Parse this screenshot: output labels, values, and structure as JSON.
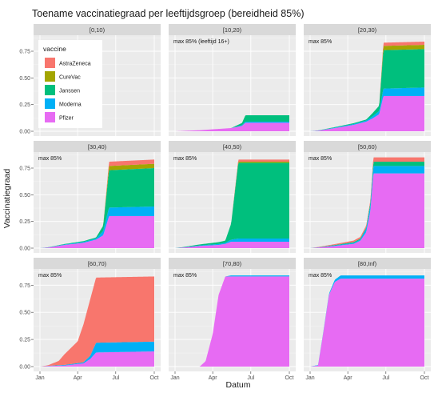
{
  "title": "Toename vaccinatiegraad per leeftijdsgroep (bereidheid 85%)",
  "chart_data": {
    "type": "area",
    "title": "Toename vaccinatiegraad per leeftijdsgroep (bereidheid 85%)",
    "xlabel": "Datum",
    "ylabel": "Vaccinatiegraad",
    "ylim": [
      0,
      0.87
    ],
    "x_ticks": [
      "Jan",
      "Apr",
      "Jul",
      "Oct"
    ],
    "y_ticks": [
      "0.00",
      "0.25",
      "0.50",
      "0.75"
    ],
    "stacking": "stacked area per vaccine",
    "grid": true,
    "legend": {
      "title": "vaccine",
      "placement": "inside first panel, top-left",
      "items": [
        {
          "name": "AstraZeneca",
          "color": "#F8766D"
        },
        {
          "name": "CureVac",
          "color": "#A3A500"
        },
        {
          "name": "Janssen",
          "color": "#00BF7D"
        },
        {
          "name": "Moderna",
          "color": "#00B0F6"
        },
        {
          "name": "Pfizer",
          "color": "#E76BF3"
        }
      ]
    },
    "series_order_bottom_to_top": [
      "Pfizer",
      "Moderna",
      "Janssen",
      "CureVac",
      "AstraZeneca"
    ],
    "x_domain": [
      "2021-01-01",
      "2021-10-01"
    ],
    "panels": [
      {
        "label": "[0,10)",
        "annotation": "",
        "series": {}
      },
      {
        "label": "[10,20)",
        "annotation": "max 85% (leeftijd 16+)",
        "series": {
          "Pfizer": [
            [
              "2021-01-01",
              0
            ],
            [
              "2021-03-01",
              0.01
            ],
            [
              "2021-05-15",
              0.03
            ],
            [
              "2021-06-10",
              0.05
            ],
            [
              "2021-06-18",
              0.08
            ],
            [
              "2021-10-01",
              0.08
            ]
          ],
          "Moderna": [
            [
              "2021-01-01",
              0
            ],
            [
              "2021-05-15",
              0
            ],
            [
              "2021-06-18",
              0.01
            ],
            [
              "2021-10-01",
              0.01
            ]
          ],
          "Janssen": [
            [
              "2021-01-01",
              0
            ],
            [
              "2021-05-15",
              0
            ],
            [
              "2021-06-10",
              0.02
            ],
            [
              "2021-06-18",
              0.06
            ],
            [
              "2021-10-01",
              0.06
            ]
          ],
          "CureVac": [
            [
              "2021-01-01",
              0
            ],
            [
              "2021-10-01",
              0
            ]
          ],
          "AstraZeneca": [
            [
              "2021-01-01",
              0
            ],
            [
              "2021-10-01",
              0
            ]
          ]
        }
      },
      {
        "label": "[20,30)",
        "annotation": "max 85%",
        "series": {
          "Pfizer": [
            [
              "2021-01-01",
              0
            ],
            [
              "2021-01-20",
              0.005
            ],
            [
              "2021-03-01",
              0.03
            ],
            [
              "2021-04-15",
              0.06
            ],
            [
              "2021-05-15",
              0.09
            ],
            [
              "2021-05-30",
              0.12
            ],
            [
              "2021-06-15",
              0.16
            ],
            [
              "2021-06-25",
              0.33
            ],
            [
              "2021-10-01",
              0.33
            ]
          ],
          "Moderna": [
            [
              "2021-01-01",
              0
            ],
            [
              "2021-05-15",
              0.01
            ],
            [
              "2021-06-15",
              0.03
            ],
            [
              "2021-06-25",
              0.07
            ],
            [
              "2021-10-01",
              0.08
            ]
          ],
          "Janssen": [
            [
              "2021-01-01",
              0
            ],
            [
              "2021-05-15",
              0.01
            ],
            [
              "2021-06-15",
              0.05
            ],
            [
              "2021-06-25",
              0.36
            ],
            [
              "2021-10-01",
              0.36
            ]
          ],
          "CureVac": [
            [
              "2021-01-01",
              0
            ],
            [
              "2021-06-15",
              0
            ],
            [
              "2021-06-25",
              0.04
            ],
            [
              "2021-10-01",
              0.04
            ]
          ],
          "AstraZeneca": [
            [
              "2021-01-01",
              0
            ],
            [
              "2021-06-15",
              0
            ],
            [
              "2021-06-25",
              0.03
            ],
            [
              "2021-10-01",
              0.03
            ]
          ]
        }
      },
      {
        "label": "[30,40)",
        "annotation": "max 85%",
        "series": {
          "Pfizer": [
            [
              "2021-01-01",
              0
            ],
            [
              "2021-01-20",
              0.005
            ],
            [
              "2021-03-01",
              0.03
            ],
            [
              "2021-04-15",
              0.05
            ],
            [
              "2021-05-15",
              0.08
            ],
            [
              "2021-06-01",
              0.12
            ],
            [
              "2021-06-15",
              0.3
            ],
            [
              "2021-10-01",
              0.3
            ]
          ],
          "Moderna": [
            [
              "2021-01-01",
              0
            ],
            [
              "2021-05-15",
              0.01
            ],
            [
              "2021-06-01",
              0.04
            ],
            [
              "2021-06-15",
              0.08
            ],
            [
              "2021-10-01",
              0.09
            ]
          ],
          "Janssen": [
            [
              "2021-01-01",
              0
            ],
            [
              "2021-05-15",
              0.01
            ],
            [
              "2021-06-01",
              0.05
            ],
            [
              "2021-06-15",
              0.35
            ],
            [
              "2021-10-01",
              0.36
            ]
          ],
          "CureVac": [
            [
              "2021-01-01",
              0
            ],
            [
              "2021-06-01",
              0
            ],
            [
              "2021-06-15",
              0.04
            ],
            [
              "2021-10-01",
              0.04
            ]
          ],
          "AstraZeneca": [
            [
              "2021-01-01",
              0
            ],
            [
              "2021-06-01",
              0
            ],
            [
              "2021-06-15",
              0.04
            ],
            [
              "2021-10-01",
              0.04
            ]
          ]
        }
      },
      {
        "label": "[40,50)",
        "annotation": "max 85%",
        "series": {
          "Pfizer": [
            [
              "2021-01-01",
              0
            ],
            [
              "2021-01-20",
              0.005
            ],
            [
              "2021-03-01",
              0.02
            ],
            [
              "2021-04-15",
              0.03
            ],
            [
              "2021-05-01",
              0.04
            ],
            [
              "2021-05-15",
              0.06
            ],
            [
              "2021-06-01",
              0.06
            ],
            [
              "2021-10-01",
              0.06
            ]
          ],
          "Moderna": [
            [
              "2021-01-01",
              0
            ],
            [
              "2021-05-01",
              0.01
            ],
            [
              "2021-06-01",
              0.03
            ],
            [
              "2021-10-01",
              0.03
            ]
          ],
          "Janssen": [
            [
              "2021-01-01",
              0
            ],
            [
              "2021-05-01",
              0.02
            ],
            [
              "2021-05-15",
              0.15
            ],
            [
              "2021-06-01",
              0.71
            ],
            [
              "2021-10-01",
              0.71
            ]
          ],
          "CureVac": [
            [
              "2021-01-01",
              0
            ],
            [
              "2021-05-15",
              0
            ],
            [
              "2021-06-01",
              0.01
            ],
            [
              "2021-10-01",
              0.01
            ]
          ],
          "AstraZeneca": [
            [
              "2021-01-01",
              0
            ],
            [
              "2021-05-15",
              0
            ],
            [
              "2021-06-01",
              0.02
            ],
            [
              "2021-10-01",
              0.02
            ]
          ]
        }
      },
      {
        "label": "[50,60)",
        "annotation": "max 85%",
        "series": {
          "Pfizer": [
            [
              "2021-01-01",
              0
            ],
            [
              "2021-01-20",
              0.005
            ],
            [
              "2021-03-01",
              0.02
            ],
            [
              "2021-04-15",
              0.04
            ],
            [
              "2021-05-01",
              0.07
            ],
            [
              "2021-05-15",
              0.15
            ],
            [
              "2021-05-25",
              0.35
            ],
            [
              "2021-06-01",
              0.7
            ],
            [
              "2021-10-01",
              0.7
            ]
          ],
          "Moderna": [
            [
              "2021-01-01",
              0
            ],
            [
              "2021-05-01",
              0.01
            ],
            [
              "2021-05-25",
              0.05
            ],
            [
              "2021-06-01",
              0.07
            ],
            [
              "2021-10-01",
              0.07
            ]
          ],
          "Janssen": [
            [
              "2021-01-01",
              0
            ],
            [
              "2021-05-15",
              0.01
            ],
            [
              "2021-06-01",
              0.04
            ],
            [
              "2021-10-01",
              0.04
            ]
          ],
          "CureVac": [
            [
              "2021-01-01",
              0
            ],
            [
              "2021-10-01",
              0
            ]
          ],
          "AstraZeneca": [
            [
              "2021-01-01",
              0
            ],
            [
              "2021-05-25",
              0.02
            ],
            [
              "2021-06-01",
              0.04
            ],
            [
              "2021-10-01",
              0.04
            ]
          ]
        }
      },
      {
        "label": "[60,70)",
        "annotation": "max 85%",
        "series": {
          "Pfizer": [
            [
              "2021-01-01",
              0
            ],
            [
              "2021-01-20",
              0.005
            ],
            [
              "2021-03-01",
              0.01
            ],
            [
              "2021-04-15",
              0.03
            ],
            [
              "2021-05-01",
              0.07
            ],
            [
              "2021-05-15",
              0.13
            ],
            [
              "2021-10-01",
              0.14
            ]
          ],
          "Moderna": [
            [
              "2021-01-01",
              0
            ],
            [
              "2021-04-15",
              0.01
            ],
            [
              "2021-05-01",
              0.03
            ],
            [
              "2021-05-15",
              0.09
            ],
            [
              "2021-10-01",
              0.09
            ]
          ],
          "Janssen": [
            [
              "2021-01-01",
              0
            ],
            [
              "2021-10-01",
              0
            ]
          ],
          "CureVac": [
            [
              "2021-01-01",
              0
            ],
            [
              "2021-10-01",
              0
            ]
          ],
          "AstraZeneca": [
            [
              "2021-01-01",
              0
            ],
            [
              "2021-01-20",
              0.005
            ],
            [
              "2021-02-15",
              0.04
            ],
            [
              "2021-03-01",
              0.1
            ],
            [
              "2021-04-01",
              0.2
            ],
            [
              "2021-04-15",
              0.35
            ],
            [
              "2021-05-01",
              0.52
            ],
            [
              "2021-05-15",
              0.6
            ],
            [
              "2021-06-15",
              0.6
            ],
            [
              "2021-10-01",
              0.6
            ]
          ]
        }
      },
      {
        "label": "[70,80)",
        "annotation": "max 85%",
        "series": {
          "Pfizer": [
            [
              "2021-01-01",
              0
            ],
            [
              "2021-03-01",
              0
            ],
            [
              "2021-03-15",
              0.05
            ],
            [
              "2021-04-01",
              0.3
            ],
            [
              "2021-04-15",
              0.66
            ],
            [
              "2021-05-01",
              0.83
            ],
            [
              "2021-10-01",
              0.83
            ]
          ],
          "Moderna": [
            [
              "2021-01-01",
              0
            ],
            [
              "2021-05-01",
              0
            ],
            [
              "2021-05-15",
              0.01
            ],
            [
              "2021-10-01",
              0.01
            ]
          ],
          "Janssen": [
            [
              "2021-01-01",
              0
            ],
            [
              "2021-10-01",
              0
            ]
          ],
          "CureVac": [
            [
              "2021-01-01",
              0
            ],
            [
              "2021-10-01",
              0
            ]
          ],
          "AstraZeneca": [
            [
              "2021-01-01",
              0
            ],
            [
              "2021-10-01",
              0
            ]
          ]
        }
      },
      {
        "label": "[80,Inf)",
        "annotation": "max 85%",
        "series": {
          "Pfizer": [
            [
              "2021-01-01",
              0
            ],
            [
              "2021-01-20",
              0.01
            ],
            [
              "2021-02-01",
              0.3
            ],
            [
              "2021-02-15",
              0.66
            ],
            [
              "2021-03-01",
              0.78
            ],
            [
              "2021-03-15",
              0.81
            ],
            [
              "2021-10-01",
              0.81
            ]
          ],
          "Moderna": [
            [
              "2021-01-01",
              0
            ],
            [
              "2021-02-15",
              0.01
            ],
            [
              "2021-03-15",
              0.03
            ],
            [
              "2021-10-01",
              0.03
            ]
          ],
          "Janssen": [
            [
              "2021-01-01",
              0
            ],
            [
              "2021-10-01",
              0
            ]
          ],
          "CureVac": [
            [
              "2021-01-01",
              0
            ],
            [
              "2021-10-01",
              0
            ]
          ],
          "AstraZeneca": [
            [
              "2021-01-01",
              0
            ],
            [
              "2021-10-01",
              0
            ]
          ]
        }
      }
    ]
  }
}
